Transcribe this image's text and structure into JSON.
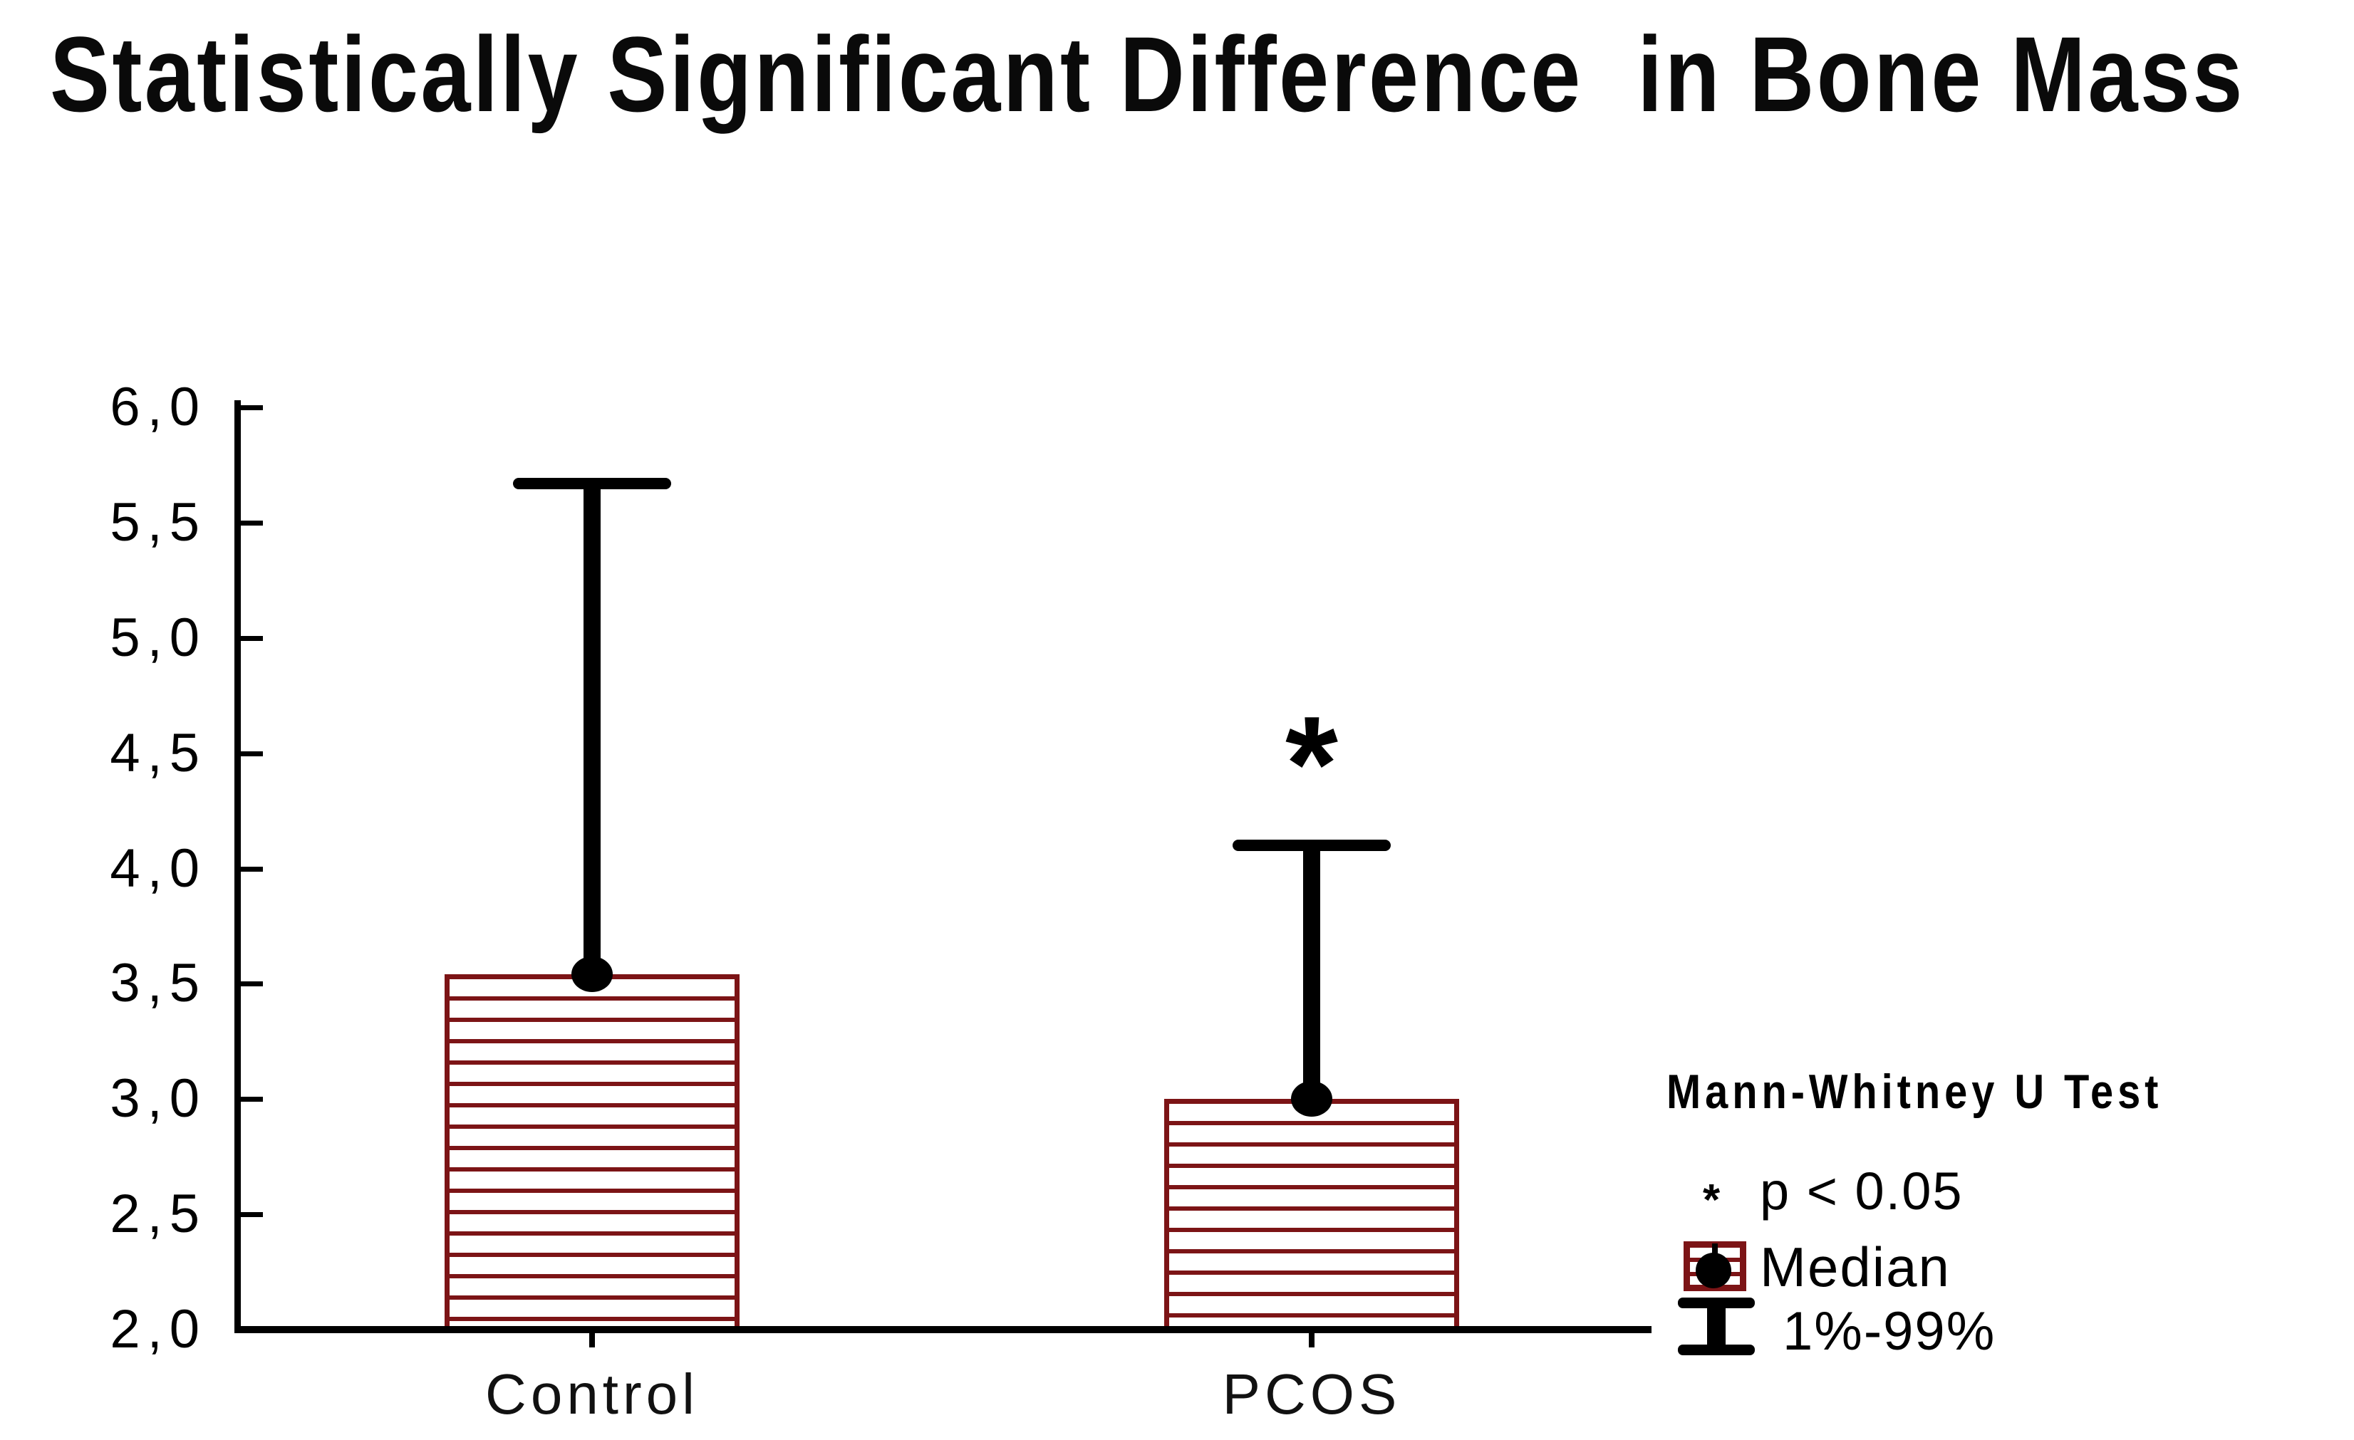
{
  "title": "Statistically Significant Difference  in Bone Mass",
  "colors": {
    "bar_outline_and_hatch": "#7c1416",
    "error_bar_and_marker": "#000000",
    "background": "#ffffff"
  },
  "legend": {
    "test_name": "Mann-Whitney U Test",
    "sig_symbol": "*",
    "sig_text": "p < 0.05",
    "median_label": "Median",
    "range_label": "1%-99%"
  },
  "chart_data": {
    "type": "bar",
    "title": "Statistically Significant Difference  in Bone Mass",
    "categories": [
      "Control",
      "PCOS"
    ],
    "series": [
      {
        "name": "Median",
        "values": [
          3.54,
          3.0
        ]
      }
    ],
    "error_upper_1_99pct": [
      5.67,
      4.1
    ],
    "ylim": [
      2.0,
      6.0
    ],
    "ytick_step": 0.5,
    "ytick_labels": [
      "6,0",
      "5,5",
      "5,0",
      "4,5",
      "4,0",
      "3,5",
      "3,0",
      "2,5",
      "2,0"
    ],
    "xlabel": "",
    "ylabel": "",
    "grid": false,
    "legend_position": "bottom-right",
    "legend_entries": [
      "Mann-Whitney U Test",
      "* p < 0.05",
      "Median",
      "1%-99%"
    ],
    "annotations": [
      {
        "category": "PCOS",
        "text": "*"
      }
    ]
  }
}
